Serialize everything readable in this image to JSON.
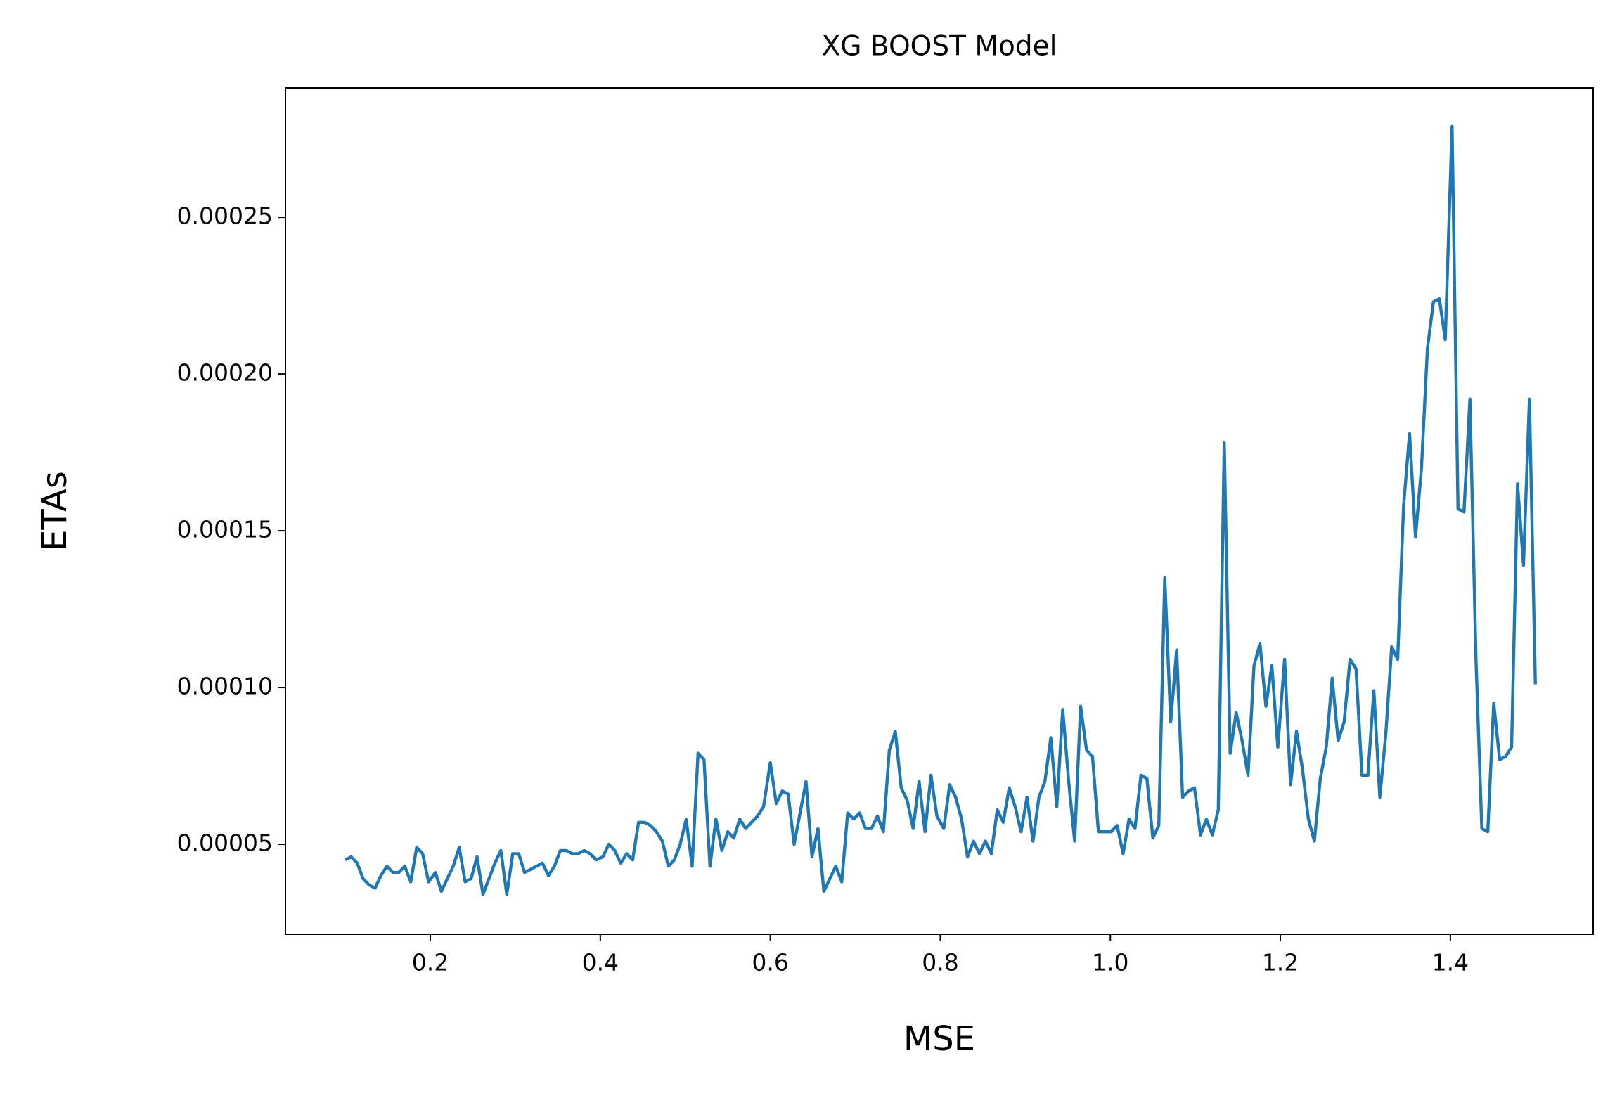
{
  "chart_data": {
    "type": "line",
    "title": "XG BOOST Model",
    "x_label": "MSE",
    "y_label": "ETAs",
    "color": "#1f77b4",
    "x": [
      0.1,
      0.107,
      0.114,
      0.121,
      0.128,
      0.135,
      0.142,
      0.149,
      0.156,
      0.163,
      0.17,
      0.177,
      0.184,
      0.191,
      0.198,
      0.206,
      0.213,
      0.22,
      0.227,
      0.234,
      0.241,
      0.248,
      0.255,
      0.262,
      0.269,
      0.276,
      0.283,
      0.29,
      0.297,
      0.304,
      0.311,
      0.318,
      0.325,
      0.332,
      0.339,
      0.346,
      0.353,
      0.36,
      0.367,
      0.374,
      0.381,
      0.388,
      0.395,
      0.403,
      0.41,
      0.417,
      0.424,
      0.431,
      0.438,
      0.445,
      0.452,
      0.459,
      0.466,
      0.473,
      0.48,
      0.487,
      0.494,
      0.501,
      0.508,
      0.515,
      0.522,
      0.529,
      0.536,
      0.543,
      0.55,
      0.557,
      0.564,
      0.571,
      0.578,
      0.585,
      0.592,
      0.6,
      0.607,
      0.614,
      0.621,
      0.628,
      0.635,
      0.642,
      0.649,
      0.656,
      0.663,
      0.67,
      0.677,
      0.684,
      0.691,
      0.698,
      0.705,
      0.712,
      0.719,
      0.726,
      0.733,
      0.74,
      0.747,
      0.754,
      0.761,
      0.768,
      0.775,
      0.782,
      0.789,
      0.796,
      0.804,
      0.811,
      0.818,
      0.825,
      0.832,
      0.839,
      0.846,
      0.853,
      0.86,
      0.867,
      0.874,
      0.881,
      0.888,
      0.895,
      0.902,
      0.909,
      0.916,
      0.923,
      0.93,
      0.937,
      0.944,
      0.951,
      0.958,
      0.965,
      0.972,
      0.979,
      0.986,
      0.993,
      1.001,
      1.008,
      1.015,
      1.022,
      1.029,
      1.036,
      1.043,
      1.05,
      1.057,
      1.064,
      1.071,
      1.078,
      1.085,
      1.092,
      1.099,
      1.106,
      1.113,
      1.12,
      1.127,
      1.134,
      1.141,
      1.148,
      1.155,
      1.162,
      1.169,
      1.176,
      1.183,
      1.19,
      1.197,
      1.205,
      1.212,
      1.219,
      1.226,
      1.233,
      1.24,
      1.247,
      1.254,
      1.261,
      1.268,
      1.275,
      1.282,
      1.289,
      1.296,
      1.303,
      1.31,
      1.317,
      1.324,
      1.331,
      1.338,
      1.345,
      1.352,
      1.359,
      1.366,
      1.373,
      1.38,
      1.387,
      1.394,
      1.402,
      1.409,
      1.416,
      1.423,
      1.43,
      1.437,
      1.444,
      1.451,
      1.458,
      1.465,
      1.472,
      1.479,
      1.486,
      1.493,
      1.5
    ],
    "values": [
      4.5e-05,
      4.6e-05,
      4.4e-05,
      3.9e-05,
      3.7e-05,
      3.6e-05,
      4e-05,
      4.3e-05,
      4.1e-05,
      4.1e-05,
      4.3e-05,
      3.8e-05,
      4.9e-05,
      4.7e-05,
      3.8e-05,
      4.1e-05,
      3.5e-05,
      3.9e-05,
      4.3e-05,
      4.9e-05,
      3.8e-05,
      3.9e-05,
      4.6e-05,
      3.4e-05,
      3.9e-05,
      4.4e-05,
      4.8e-05,
      3.4e-05,
      4.7e-05,
      4.7e-05,
      4.1e-05,
      4.2e-05,
      4.3e-05,
      4.4e-05,
      4e-05,
      4.3e-05,
      4.8e-05,
      4.8e-05,
      4.7e-05,
      4.7e-05,
      4.8e-05,
      4.7e-05,
      4.5e-05,
      4.6e-05,
      5e-05,
      4.8e-05,
      4.4e-05,
      4.7e-05,
      4.5e-05,
      5.7e-05,
      5.7e-05,
      5.6e-05,
      5.4e-05,
      5.1e-05,
      4.3e-05,
      4.5e-05,
      5e-05,
      5.8e-05,
      4.3e-05,
      7.9e-05,
      7.7e-05,
      4.3e-05,
      5.8e-05,
      4.8e-05,
      5.4e-05,
      5.2e-05,
      5.8e-05,
      5.5e-05,
      5.7e-05,
      5.9e-05,
      6.2e-05,
      7.6e-05,
      6.3e-05,
      6.7e-05,
      6.6e-05,
      5e-05,
      6e-05,
      7e-05,
      4.6e-05,
      5.5e-05,
      3.5e-05,
      3.9e-05,
      4.3e-05,
      3.8e-05,
      6e-05,
      5.8e-05,
      6e-05,
      5.5e-05,
      5.5e-05,
      5.9e-05,
      5.4e-05,
      8e-05,
      8.6e-05,
      6.8e-05,
      6.4e-05,
      5.5e-05,
      7e-05,
      5.4e-05,
      7.2e-05,
      5.9e-05,
      5.5e-05,
      6.9e-05,
      6.5e-05,
      5.8e-05,
      4.6e-05,
      5.1e-05,
      4.7e-05,
      5.1e-05,
      4.7e-05,
      6.1e-05,
      5.7e-05,
      6.8e-05,
      6.2e-05,
      5.4e-05,
      6.5e-05,
      5.1e-05,
      6.5e-05,
      7e-05,
      8.4e-05,
      6.2e-05,
      9.3e-05,
      7e-05,
      5.1e-05,
      9.4e-05,
      8e-05,
      7.8e-05,
      5.4e-05,
      5.4e-05,
      5.4e-05,
      5.6e-05,
      4.7e-05,
      5.8e-05,
      5.5e-05,
      7.2e-05,
      7.1e-05,
      5.2e-05,
      5.6e-05,
      0.000135,
      8.9e-05,
      0.000112,
      6.5e-05,
      6.7e-05,
      6.8e-05,
      5.3e-05,
      5.8e-05,
      5.3e-05,
      6.1e-05,
      0.000178,
      7.9e-05,
      9.2e-05,
      8.3e-05,
      7.2e-05,
      0.000107,
      0.000114,
      9.4e-05,
      0.000107,
      8.1e-05,
      0.000109,
      6.9e-05,
      8.6e-05,
      7.4e-05,
      5.8e-05,
      5.1e-05,
      7.1e-05,
      8.1e-05,
      0.000103,
      8.3e-05,
      8.9e-05,
      0.000109,
      0.000106,
      7.2e-05,
      7.2e-05,
      9.9e-05,
      6.5e-05,
      8.5e-05,
      0.000113,
      0.000109,
      0.000158,
      0.000181,
      0.000148,
      0.00017,
      0.000208,
      0.000223,
      0.000224,
      0.000211,
      0.000279,
      0.000157,
      0.000156,
      0.000192,
      0.00011,
      5.5e-05,
      5.4e-05,
      9.5e-05,
      7.7e-05,
      7.8e-05,
      8.1e-05,
      0.000165,
      0.000139,
      0.000192,
      0.000101
    ],
    "xlim": [
      0.0296,
      1.568
    ],
    "xticks": [
      0.2,
      0.4,
      0.6,
      0.8,
      {
        "value": 1.0,
        "label": "1.0"
      },
      1.2,
      1.4
    ],
    "ylim": [
      2.13e-05,
      0.0002913
    ],
    "yticks": [
      5e-05,
      {
        "value": 0.0001,
        "label": "0.00010"
      },
      0.00015,
      {
        "value": 0.0002,
        "label": "0.00020"
      },
      0.00025
    ],
    "grid": false
  }
}
